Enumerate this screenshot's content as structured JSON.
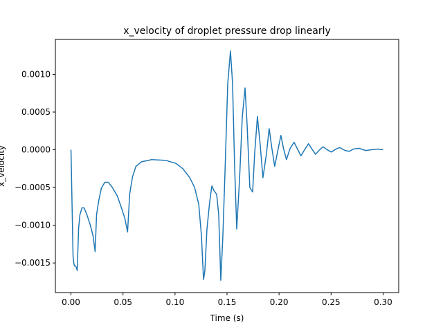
{
  "chart_data": {
    "type": "line",
    "title": "x_velocity of droplet pressure drop linearly",
    "xlabel": "Time (s)",
    "ylabel": "x_velocity",
    "xlim": [
      -0.015,
      0.315
    ],
    "ylim": [
      -0.0018925,
      0.0014625
    ],
    "xticks": [
      {
        "value": 0,
        "label": "0.00"
      },
      {
        "value": 0.05,
        "label": "0.05"
      },
      {
        "value": 0.1,
        "label": "0.10"
      },
      {
        "value": 0.15,
        "label": "0.15"
      },
      {
        "value": 0.2,
        "label": "0.20"
      },
      {
        "value": 0.25,
        "label": "0.25"
      },
      {
        "value": 0.3,
        "label": "0.30"
      }
    ],
    "yticks": [
      {
        "value": -0.0015,
        "label": "−0.0015"
      },
      {
        "value": -0.001,
        "label": "−0.0010"
      },
      {
        "value": -0.0005,
        "label": "−0.0005"
      },
      {
        "value": 0,
        "label": "0.0000"
      },
      {
        "value": 0.0005,
        "label": "0.0005"
      },
      {
        "value": 0.001,
        "label": "0.0010"
      }
    ],
    "grid": false,
    "series": [
      {
        "color": "#1f77b4",
        "x": [
          0,
          0.002,
          0.0027,
          0.0033,
          0.0046,
          0.006,
          0.0073,
          0.0086,
          0.0106,
          0.0126,
          0.0153,
          0.0186,
          0.0212,
          0.0232,
          0.0246,
          0.0266,
          0.0292,
          0.0325,
          0.0358,
          0.0398,
          0.0445,
          0.0485,
          0.0518,
          0.0544,
          0.0564,
          0.0591,
          0.0624,
          0.0677,
          0.0777,
          0.0909,
          0.1009,
          0.1075,
          0.1142,
          0.1188,
          0.1228,
          0.1254,
          0.1274,
          0.1287,
          0.1307,
          0.1334,
          0.1354,
          0.1374,
          0.14,
          0.142,
          0.144,
          0.146,
          0.148,
          0.1507,
          0.1533,
          0.1553,
          0.1573,
          0.1593,
          0.162,
          0.1646,
          0.1673,
          0.1693,
          0.1719,
          0.1746,
          0.1766,
          0.1792,
          0.1819,
          0.1845,
          0.1878,
          0.1905,
          0.1932,
          0.1958,
          0.1991,
          0.2018,
          0.2044,
          0.2071,
          0.2104,
          0.2144,
          0.2177,
          0.221,
          0.225,
          0.2283,
          0.2316,
          0.235,
          0.239,
          0.2423,
          0.2463,
          0.2502,
          0.2548,
          0.2582,
          0.2635,
          0.2675,
          0.2715,
          0.2768,
          0.2834,
          0.2887,
          0.2947,
          0.3
        ],
        "values": [
          0,
          -0.00141,
          -0.0015,
          -0.00154,
          -0.00154,
          -0.0016,
          -0.00105,
          -0.00086,
          -0.00077,
          -0.00077,
          -0.00086,
          -0.001,
          -0.00114,
          -0.00135,
          -0.00086,
          -0.00068,
          -0.00051,
          -0.00043,
          -0.00043,
          -0.0005,
          -0.00061,
          -0.00077,
          -0.00091,
          -0.00109,
          -0.00059,
          -0.00036,
          -0.00022,
          -0.00016,
          -0.00013,
          -0.00014,
          -0.00018,
          -0.00025,
          -0.00037,
          -0.0005,
          -0.00072,
          -0.00114,
          -0.00172,
          -0.0016,
          -0.00105,
          -0.00068,
          -0.00048,
          -0.00054,
          -0.00059,
          -0.00086,
          -0.00173,
          -0.00114,
          -0.00031,
          0.00088,
          0.00131,
          0.00088,
          -0.00022,
          -0.00105,
          -0.0004,
          0.00042,
          0.00082,
          0.00033,
          -0.0005,
          -0.00056,
          -4e-05,
          0.00044,
          6e-05,
          -0.00037,
          -6e-05,
          0.00028,
          1e-05,
          -0.00022,
          1e-05,
          0.00019,
          1e-05,
          -0.00013,
          1e-05,
          0.0001,
          1e-05,
          -8e-05,
          1e-05,
          8e-05,
          1e-05,
          -6e-05,
          0,
          4e-05,
          0,
          -3e-05,
          1e-05,
          3e-05,
          -1e-05,
          -2e-05,
          1e-05,
          2e-05,
          -1e-05,
          0,
          1e-05,
          0
        ]
      }
    ]
  }
}
